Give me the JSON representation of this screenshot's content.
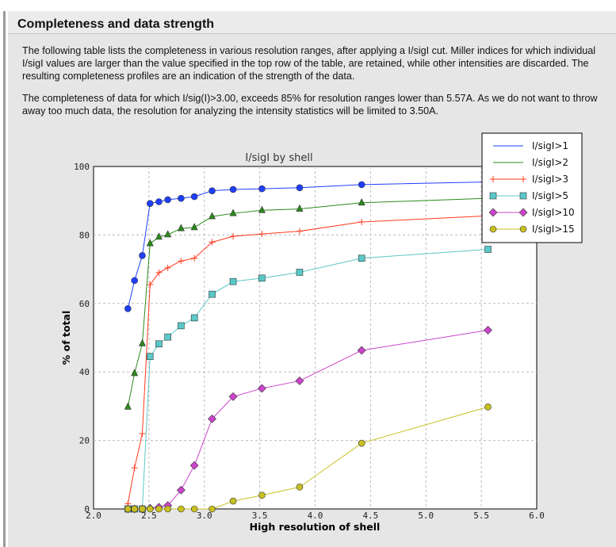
{
  "section": {
    "title": "Completeness and data strength",
    "paragraph1": "The following table lists the completeness in various resolution ranges, after applying a I/sigI cut. Miller indices for which individual I/sigI values are larger than the value specified in the top row of the table, are retained, while other intensities are discarded. The resulting completeness profiles are an indication of the strength of the data.",
    "paragraph2": "The completeness of data for which I/sig(I)>3.00, exceeds  85% for resolution ranges lower than 5.57A. As we do not want to throw away too much data, the resolution for analyzing the intensity statistics will be limited to 3.50A."
  },
  "chart_data": {
    "type": "line",
    "title": "I/sigI by shell",
    "xlabel": "High resolution of shell",
    "ylabel": "% of total",
    "xlim": [
      2.0,
      6.0
    ],
    "ylim": [
      0,
      100
    ],
    "xticks": [
      "2.0",
      "2.5",
      "3.0",
      "3.5",
      "4.0",
      "4.5",
      "5.0",
      "5.5",
      "6.0"
    ],
    "yticks": [
      "0",
      "20",
      "40",
      "60",
      "80",
      "100"
    ],
    "grid": true,
    "legend_position": "top-right",
    "x": [
      2.31,
      2.37,
      2.44,
      2.51,
      2.59,
      2.67,
      2.79,
      2.91,
      3.07,
      3.26,
      3.52,
      3.86,
      4.42,
      5.56
    ],
    "series": [
      {
        "name": "I/sigI>1",
        "color": "#1f3fff",
        "marker": "circle",
        "values": [
          58.5,
          66.7,
          74.0,
          89.2,
          89.7,
          90.3,
          90.7,
          91.2,
          92.9,
          93.3,
          93.5,
          93.8,
          94.7,
          95.5
        ]
      },
      {
        "name": "I/sigI>2",
        "color": "#2a8a1a",
        "marker": "triangle",
        "values": [
          29.8,
          39.6,
          48.3,
          77.5,
          79.4,
          80.1,
          81.9,
          82.2,
          85.4,
          86.3,
          87.2,
          87.6,
          89.4,
          90.7
        ]
      },
      {
        "name": "I/sigI>3",
        "color": "#ff3b1f",
        "marker": "plus",
        "values": [
          1.5,
          12.0,
          22.0,
          65.5,
          69.0,
          70.4,
          72.4,
          73.2,
          77.9,
          79.6,
          80.3,
          81.1,
          83.8,
          85.6
        ]
      },
      {
        "name": "I/sigI>5",
        "color": "#5ac8c8",
        "marker": "square",
        "values": [
          0,
          0,
          0,
          44.5,
          48.2,
          50.2,
          53.5,
          55.8,
          62.7,
          66.4,
          67.4,
          69.1,
          73.2,
          75.8
        ]
      },
      {
        "name": "I/sigI>10",
        "color": "#cc44cc",
        "marker": "diamond",
        "values": [
          0,
          0,
          0,
          0.2,
          0.5,
          1.0,
          5.5,
          12.7,
          26.3,
          32.8,
          35.2,
          37.4,
          46.3,
          52.2
        ]
      },
      {
        "name": "I/sigI>15",
        "color": "#c8c020",
        "marker": "circle",
        "values": [
          0,
          0,
          0,
          0,
          0,
          0,
          0,
          0,
          0,
          2.3,
          4.0,
          6.4,
          19.2,
          29.8
        ]
      }
    ]
  }
}
